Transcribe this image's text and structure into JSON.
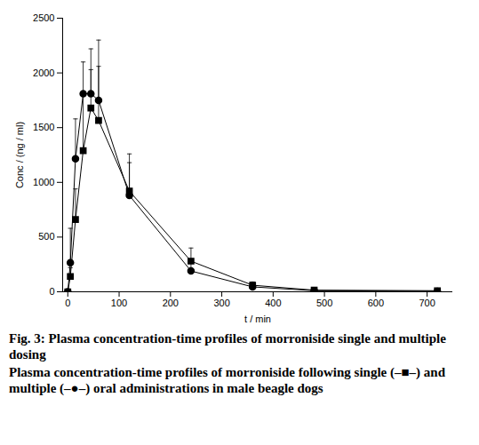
{
  "chart_data": {
    "type": "line",
    "title": "Fig. 3: Plasma concentration-time profiles of morroniside single and multiple dosing",
    "caption": "Plasma concentration-time profiles of morroniside following single (–■–) and multiple (–●–) oral administrations in male beagle dogs",
    "x_label": "t / min",
    "y_label": "Conc / (ng / ml)",
    "x": [
      0,
      5,
      15,
      30,
      45,
      60,
      120,
      240,
      360,
      480,
      720
    ],
    "series": [
      {
        "name": "single",
        "color": "#000000",
        "marker": "square",
        "line_style": "solid",
        "values": [
          0,
          140,
          660,
          1290,
          1680,
          1565,
          920,
          280,
          60,
          15,
          10
        ],
        "errors": [
          0,
          80,
          280,
          500,
          350,
          495,
          340,
          120,
          30,
          10,
          5
        ]
      },
      {
        "name": "multiple",
        "color": "#000000",
        "marker": "circle",
        "line_style": "solid",
        "values": [
          0,
          265,
          1215,
          1810,
          1810,
          1750,
          880,
          190,
          45,
          10,
          5
        ],
        "errors": [
          0,
          315,
          365,
          290,
          410,
          550,
          300,
          80,
          25,
          8,
          5
        ]
      }
    ],
    "xlim": [
      -10,
      750
    ],
    "xticks": [
      0,
      100,
      200,
      300,
      400,
      500,
      600,
      700
    ],
    "ylim": [
      0,
      2500
    ],
    "yticks": [
      0,
      500,
      1000,
      1500,
      2000,
      2500
    ],
    "grid": false
  }
}
